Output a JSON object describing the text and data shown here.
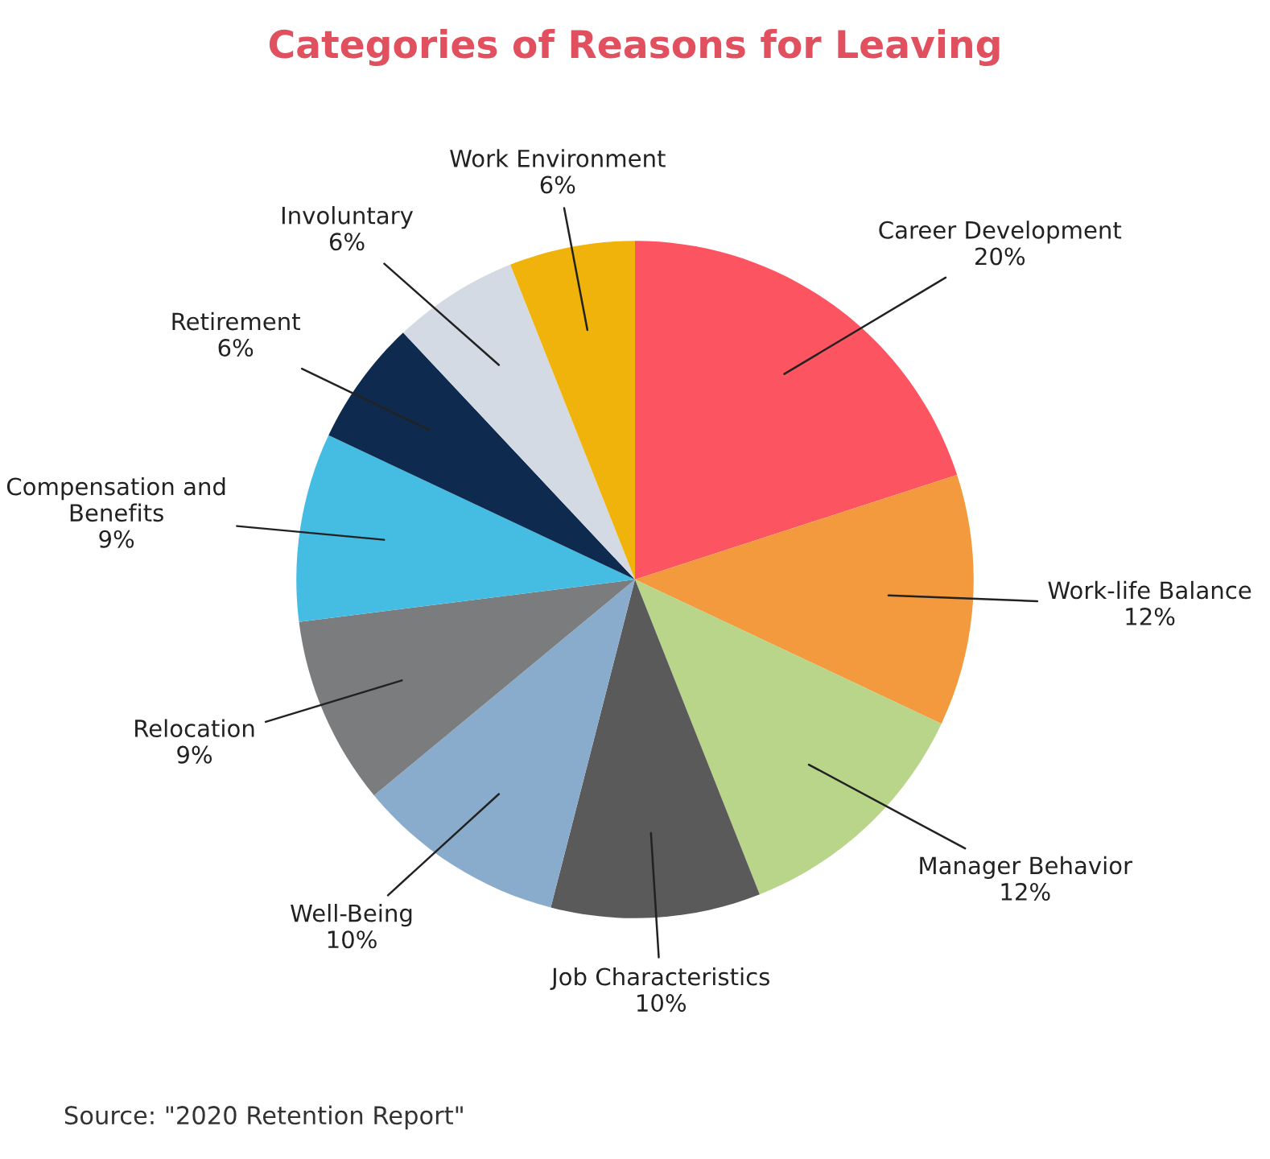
{
  "chart_data": {
    "type": "pie",
    "title": "Categories of Reasons for Leaving",
    "categories": [
      "Career Development",
      "Work-life Balance",
      "Manager Behavior",
      "Job Characteristics",
      "Well-Being",
      "Relocation",
      "Compensation and Benefits",
      "Retirement",
      "Involuntary",
      "Work Environment"
    ],
    "values": [
      20,
      12,
      12,
      10,
      10,
      9,
      9,
      6,
      6,
      6
    ],
    "value_labels": [
      "20%",
      "12%",
      "12%",
      "10%",
      "10%",
      "9%",
      "9%",
      "6%",
      "6%",
      "6%"
    ],
    "colors": [
      "#fc5461",
      "#f39a3e",
      "#b8d58a",
      "#5a5a5a",
      "#8aaccc",
      "#7b7c7e",
      "#45bde3",
      "#0f2a4f",
      "#d3dae3",
      "#f0b30c"
    ],
    "annotations": [
      "Source: \"2020 Retention Report\""
    ]
  }
}
